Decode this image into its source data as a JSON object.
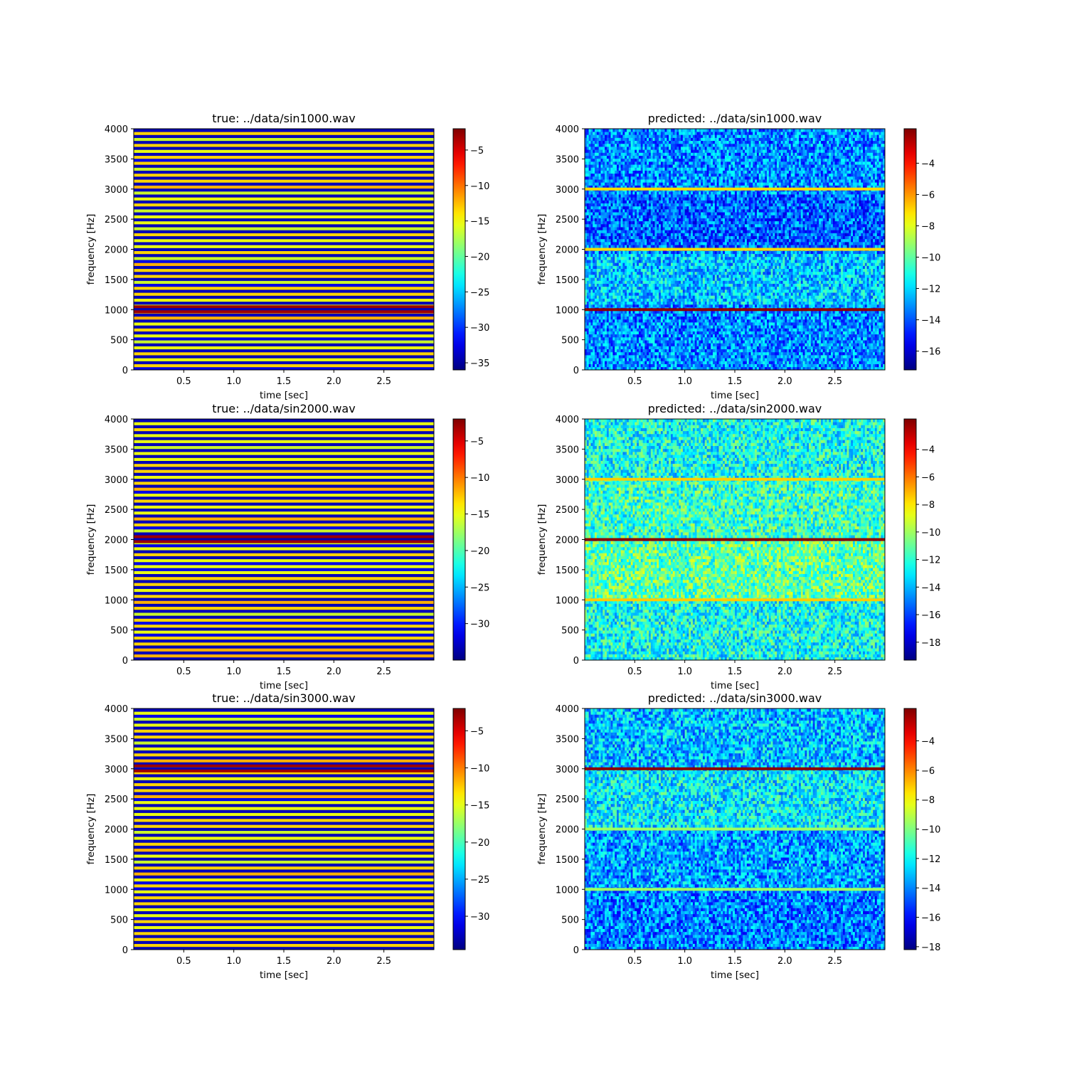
{
  "chart_data": [
    {
      "type": "heatmap",
      "title": "true: ../data/sin1000.wav",
      "xlabel": "time [sec]",
      "ylabel": "frequency [Hz]",
      "xlim": [
        0,
        3.0
      ],
      "ylim": [
        0,
        4000
      ],
      "xticks": [
        "0.5",
        "1.0",
        "1.5",
        "2.0",
        "2.5"
      ],
      "yticks": [
        "0",
        "500",
        "1000",
        "1500",
        "2000",
        "2500",
        "3000",
        "3500",
        "4000"
      ],
      "colormap": "jet",
      "colorbar": {
        "range": [
          -36,
          -2
        ],
        "ticks": [
          "−35",
          "−30",
          "−25",
          "−20",
          "−15",
          "−10",
          "−5"
        ]
      },
      "pattern": "alternating-bands",
      "peak_frequency": 1000
    },
    {
      "type": "heatmap",
      "title": "predicted: ../data/sin1000.wav",
      "xlabel": "time [sec]",
      "ylabel": "frequency [Hz]",
      "xlim": [
        0,
        3.0
      ],
      "ylim": [
        0,
        4000
      ],
      "xticks": [
        "0.5",
        "1.0",
        "1.5",
        "2.0",
        "2.5"
      ],
      "yticks": [
        "0",
        "500",
        "1000",
        "1500",
        "2000",
        "2500",
        "3000",
        "3500",
        "4000"
      ],
      "colormap": "jet",
      "colorbar": {
        "range": [
          -17.2,
          -1.8
        ],
        "ticks": [
          "−16",
          "−14",
          "−12",
          "−10",
          "−8",
          "−6",
          "−4"
        ]
      },
      "pattern": "noise",
      "lines": [
        {
          "frequency": 1000,
          "value": -2.0
        },
        {
          "frequency": 2000,
          "value": -7.0
        },
        {
          "frequency": 3000,
          "value": -7.0
        }
      ]
    },
    {
      "type": "heatmap",
      "title": "true: ../data/sin2000.wav",
      "xlabel": "time [sec]",
      "ylabel": "frequency [Hz]",
      "xlim": [
        0,
        3.0
      ],
      "ylim": [
        0,
        4000
      ],
      "xticks": [
        "0.5",
        "1.0",
        "1.5",
        "2.0",
        "2.5"
      ],
      "yticks": [
        "0",
        "500",
        "1000",
        "1500",
        "2000",
        "2500",
        "3000",
        "3500",
        "4000"
      ],
      "colormap": "jet",
      "colorbar": {
        "range": [
          -35,
          -2
        ],
        "ticks": [
          "−30",
          "−25",
          "−20",
          "−15",
          "−10",
          "−5"
        ]
      },
      "pattern": "alternating-bands",
      "peak_frequency": 2000
    },
    {
      "type": "heatmap",
      "title": "predicted: ../data/sin2000.wav",
      "xlabel": "time [sec]",
      "ylabel": "frequency [Hz]",
      "xlim": [
        0,
        3.0
      ],
      "ylim": [
        0,
        4000
      ],
      "xticks": [
        "0.5",
        "1.0",
        "1.5",
        "2.0",
        "2.5"
      ],
      "yticks": [
        "0",
        "500",
        "1000",
        "1500",
        "2000",
        "2500",
        "3000",
        "3500",
        "4000"
      ],
      "colormap": "jet",
      "colorbar": {
        "range": [
          -19.3,
          -1.8
        ],
        "ticks": [
          "−18",
          "−16",
          "−14",
          "−12",
          "−10",
          "−8",
          "−6",
          "−4"
        ]
      },
      "pattern": "noise",
      "lines": [
        {
          "frequency": 1000,
          "value": -7.5
        },
        {
          "frequency": 2000,
          "value": -2.0
        },
        {
          "frequency": 3000,
          "value": -7.5
        }
      ]
    },
    {
      "type": "heatmap",
      "title": "true: ../data/sin3000.wav",
      "xlabel": "time [sec]",
      "ylabel": "frequency [Hz]",
      "xlim": [
        0,
        3.0
      ],
      "ylim": [
        0,
        4000
      ],
      "xticks": [
        "0.5",
        "1.0",
        "1.5",
        "2.0",
        "2.5"
      ],
      "yticks": [
        "0",
        "500",
        "1000",
        "1500",
        "2000",
        "2500",
        "3000",
        "3500",
        "4000"
      ],
      "colormap": "jet",
      "colorbar": {
        "range": [
          -34.5,
          -2
        ],
        "ticks": [
          "−30",
          "−25",
          "−20",
          "−15",
          "−10",
          "−5"
        ]
      },
      "pattern": "alternating-bands",
      "peak_frequency": 3000
    },
    {
      "type": "heatmap",
      "title": "predicted: ../data/sin3000.wav",
      "xlabel": "time [sec]",
      "ylabel": "frequency [Hz]",
      "xlim": [
        0,
        3.0
      ],
      "ylim": [
        0,
        4000
      ],
      "xticks": [
        "0.5",
        "1.0",
        "1.5",
        "2.0",
        "2.5"
      ],
      "yticks": [
        "0",
        "500",
        "1000",
        "1500",
        "2000",
        "2500",
        "3000",
        "3500",
        "4000"
      ],
      "colormap": "jet",
      "colorbar": {
        "range": [
          -18.2,
          -1.8
        ],
        "ticks": [
          "−18",
          "−16",
          "−14",
          "−12",
          "−10",
          "−8",
          "−6",
          "−4"
        ]
      },
      "pattern": "noise",
      "lines": [
        {
          "frequency": 1000,
          "value": -9.5
        },
        {
          "frequency": 2000,
          "value": -9.5
        },
        {
          "frequency": 3000,
          "value": -2.0
        }
      ]
    }
  ]
}
